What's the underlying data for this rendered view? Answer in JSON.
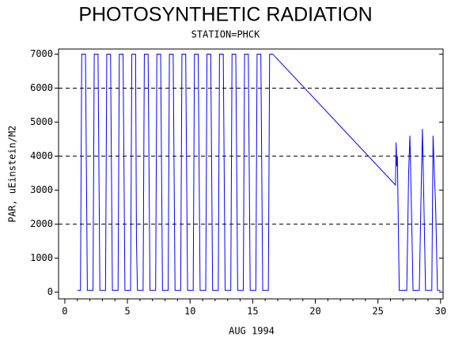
{
  "chart_data": {
    "type": "line",
    "title": "PHOTOSYNTHETIC RADIATION",
    "subtitle": "STATION=PHCK",
    "xlabel": "AUG 1994",
    "ylabel": "PAR, uEinstein/M2",
    "color": "#0000ff",
    "x": [
      1.0,
      1.25,
      1.35,
      1.65,
      1.8,
      2.25,
      2.35,
      2.65,
      2.8,
      3.25,
      3.35,
      3.65,
      3.8,
      4.25,
      4.35,
      4.65,
      4.8,
      5.25,
      5.35,
      5.65,
      5.72,
      5.8,
      6.25,
      6.35,
      6.65,
      6.8,
      7.25,
      7.35,
      7.65,
      7.8,
      8.25,
      8.35,
      8.65,
      8.8,
      9.25,
      9.35,
      9.65,
      9.8,
      10.25,
      10.35,
      10.65,
      10.8,
      11.25,
      11.35,
      11.65,
      11.8,
      12.25,
      12.35,
      12.65,
      12.8,
      13.25,
      13.35,
      13.65,
      13.8,
      14.25,
      14.35,
      14.65,
      14.8,
      15.25,
      15.35,
      15.65,
      15.8,
      16.25,
      16.35,
      16.6,
      26.4,
      26.45,
      26.5,
      26.55,
      26.7,
      27.3,
      27.45,
      27.55,
      27.7,
      27.8,
      28.3,
      28.45,
      28.55,
      28.7,
      28.8,
      29.3,
      29.4,
      29.5,
      29.6,
      29.75,
      30.0
    ],
    "values": [
      50,
      50,
      7000,
      7000,
      50,
      50,
      7000,
      7000,
      50,
      50,
      7000,
      7000,
      50,
      50,
      7000,
      7000,
      50,
      50,
      7000,
      7000,
      1500,
      50,
      50,
      7000,
      7000,
      50,
      50,
      7000,
      7000,
      50,
      50,
      7000,
      7000,
      50,
      50,
      7000,
      7000,
      50,
      50,
      7000,
      7000,
      50,
      50,
      7000,
      7000,
      50,
      50,
      7000,
      7000,
      50,
      50,
      7000,
      7000,
      50,
      50,
      7000,
      7000,
      50,
      50,
      7000,
      7000,
      50,
      50,
      7000,
      7000,
      3150,
      4400,
      3700,
      4000,
      50,
      50,
      3500,
      4600,
      2000,
      50,
      50,
      3000,
      4800,
      2000,
      50,
      50,
      4600,
      3500,
      2600,
      50,
      50
    ],
    "xlim": [
      -0.5,
      30.2
    ],
    "ylim": [
      -200,
      7150
    ],
    "xticks": [
      0,
      5,
      10,
      15,
      20,
      25,
      30
    ],
    "yticks": [
      0,
      1000,
      2000,
      3000,
      4000,
      5000,
      6000,
      7000
    ],
    "ygrid": [
      2000,
      4000,
      6000
    ]
  }
}
